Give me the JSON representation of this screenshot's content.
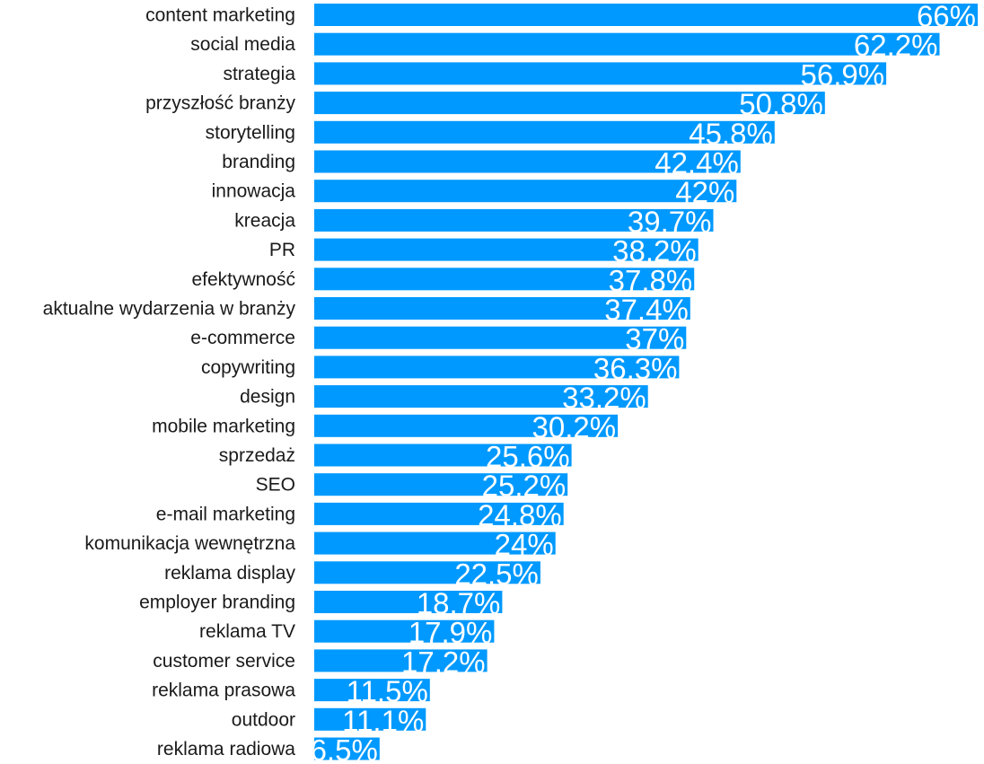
{
  "chart_data": {
    "type": "bar",
    "orientation": "horizontal",
    "categories": [
      "content marketing",
      "social media",
      "strategia",
      "przyszłość branży",
      "storytelling",
      "branding",
      "innowacja",
      "kreacja",
      "PR",
      "efektywność",
      "aktualne wydarzenia w branży",
      "e-commerce",
      "copywriting",
      "design",
      "mobile marketing",
      "sprzedaż",
      "SEO",
      "e-mail marketing",
      "komunikacja wewnętrzna",
      "reklama display",
      "employer branding",
      "reklama TV",
      "customer service",
      "reklama prasowa",
      "outdoor",
      "reklama radiowa"
    ],
    "values": [
      66,
      62.2,
      56.9,
      50.8,
      45.8,
      42.4,
      42,
      39.7,
      38.2,
      37.8,
      37.4,
      37,
      36.3,
      33.2,
      30.2,
      25.6,
      25.2,
      24.8,
      24,
      22.5,
      18.7,
      17.9,
      17.2,
      11.5,
      11.1,
      6.5
    ],
    "value_labels": [
      "66%",
      "62.2%",
      "56.9%",
      "50.8%",
      "45.8%",
      "42.4%",
      "42%",
      "39.7%",
      "38.2%",
      "37.8%",
      "37.4%",
      "37%",
      "36.3%",
      "33.2%",
      "30.2%",
      "25.6%",
      "25.2%",
      "24.8%",
      "24%",
      "22.5%",
      "18.7%",
      "17.9%",
      "17.2%",
      "11.5%",
      "11.1%",
      "6.5%"
    ],
    "unit": "%",
    "title": "",
    "xlabel": "",
    "ylabel": "",
    "xlim": [
      0,
      66
    ],
    "grid": false,
    "legend": "none",
    "bar_color": "#0099ff",
    "label_color": "#ffffff",
    "category_color": "#1a1a1a"
  }
}
